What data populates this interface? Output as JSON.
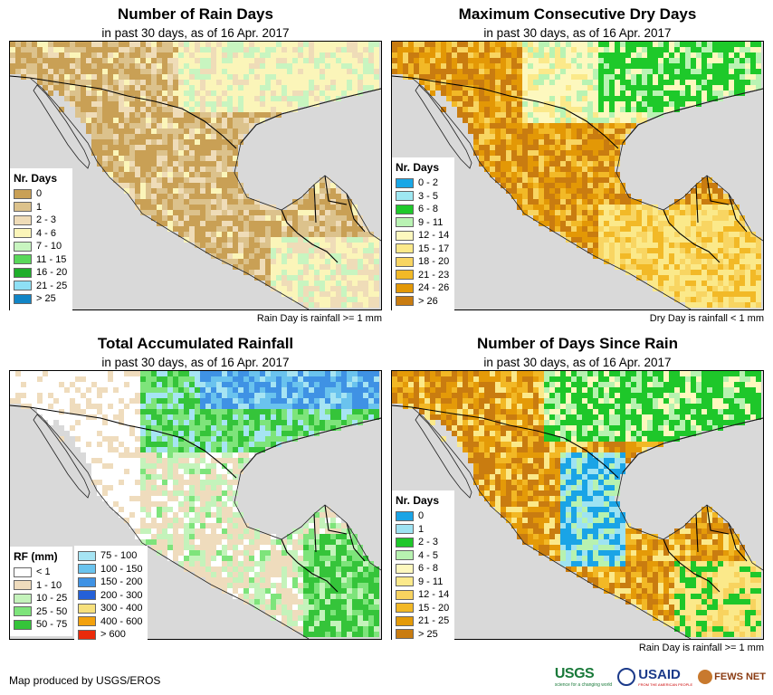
{
  "panels": [
    {
      "title": "Number of Rain Days",
      "subtitle": "in past 30 days, as of 16 Apr. 2017",
      "note": "Rain Day is rainfall >= 1 mm",
      "legend_title": "Nr. Days",
      "legend": [
        {
          "label": "0",
          "color": "#c9a055"
        },
        {
          "label": "1",
          "color": "#dcc28c"
        },
        {
          "label": "2 - 3",
          "color": "#efdcb8"
        },
        {
          "label": "4 - 6",
          "color": "#fbf5b9"
        },
        {
          "label": "7 - 10",
          "color": "#c8f5c0"
        },
        {
          "label": "11 - 15",
          "color": "#59d85a"
        },
        {
          "label": "16 - 20",
          "color": "#1fae2b"
        },
        {
          "label": "21 - 25",
          "color": "#8ee0f5"
        },
        {
          "label": "> 25",
          "color": "#1185c6"
        }
      ]
    },
    {
      "title": "Maximum Consecutive Dry Days",
      "subtitle": "in past 30 days, as of 16 Apr. 2017",
      "note": "Dry Day is rainfall < 1 mm",
      "legend_title": "Nr. Days",
      "legend": [
        {
          "label": "0 - 2",
          "color": "#19a7e6"
        },
        {
          "label": "3 - 5",
          "color": "#9ee8f2"
        },
        {
          "label": "6 - 8",
          "color": "#1ec92a"
        },
        {
          "label": "9 - 11",
          "color": "#b9f3b3"
        },
        {
          "label": "12 - 14",
          "color": "#fdf8be"
        },
        {
          "label": "15 - 17",
          "color": "#fbe98a"
        },
        {
          "label": "18 - 20",
          "color": "#f8d562"
        },
        {
          "label": "21 - 23",
          "color": "#f2b927"
        },
        {
          "label": "24 - 26",
          "color": "#e39806"
        },
        {
          "label": "> 26",
          "color": "#c97c10"
        }
      ]
    },
    {
      "title": "Total Accumulated Rainfall",
      "subtitle": "in past 30 days, as of 16 Apr. 2017",
      "legend_title": "RF (mm)",
      "legend": [
        {
          "label": "< 1",
          "color": "#ffffff"
        },
        {
          "label": "1 - 10",
          "color": "#efdcbd"
        },
        {
          "label": "10 - 25",
          "color": "#c4f3bb"
        },
        {
          "label": "25 - 50",
          "color": "#7ee47b"
        },
        {
          "label": "50 - 75",
          "color": "#35c43a"
        }
      ],
      "legend2": [
        {
          "label": "75 - 100",
          "color": "#a6e4f3"
        },
        {
          "label": "100 - 150",
          "color": "#6ac3ee"
        },
        {
          "label": "150 - 200",
          "color": "#3f92e4"
        },
        {
          "label": "200 - 300",
          "color": "#2460d8"
        },
        {
          "label": "300 - 400",
          "color": "#f7e07c"
        },
        {
          "label": "400 - 600",
          "color": "#f3a10d"
        },
        {
          "label": "> 600",
          "color": "#ea2a0a"
        }
      ]
    },
    {
      "title": "Number of Days Since Rain",
      "subtitle": "in past 30 days, as of 16 Apr. 2017",
      "note": "Rain Day is rainfall >= 1 mm",
      "legend_title": "Nr. Days",
      "legend": [
        {
          "label": "0",
          "color": "#1aa4e6"
        },
        {
          "label": "1",
          "color": "#9ee3f2"
        },
        {
          "label": "2 - 3",
          "color": "#1ec72a"
        },
        {
          "label": "4 - 5",
          "color": "#b7f2b0"
        },
        {
          "label": "6 - 8",
          "color": "#fdf8be"
        },
        {
          "label": "9 - 11",
          "color": "#fbe98a"
        },
        {
          "label": "12 - 14",
          "color": "#f8d35f"
        },
        {
          "label": "15 - 20",
          "color": "#f2b825"
        },
        {
          "label": "21 - 25",
          "color": "#e49a08"
        },
        {
          "label": "> 25",
          "color": "#c97c10"
        }
      ]
    }
  ],
  "footer": "Map produced by USGS/EROS",
  "logos": {
    "usgs": "USGS",
    "usgs_tagline": "science for a changing world",
    "usaid": "USAID",
    "usaid_tagline": "FROM THE AMERICAN PEOPLE",
    "fews": "FEWS NET"
  }
}
